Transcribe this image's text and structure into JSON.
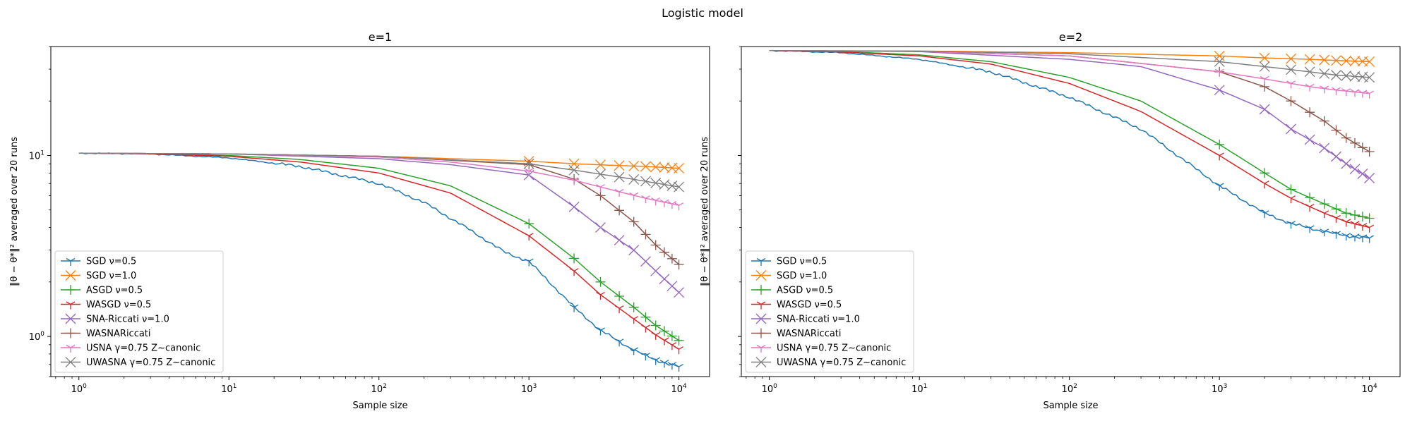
{
  "figure": {
    "title": "Logistic model"
  },
  "colors": {
    "SGD ν=0.5": "#1f77b4",
    "SGD ν=1.0": "#ff7f0e",
    "ASGD ν=0.5": "#2ca02c",
    "WASGD ν=0.5": "#d62728",
    "SNA-Riccati ν=1.0": "#9467bd",
    "WASNARiccati": "#8c564b",
    "USNA γ=0.75 Z~canonic": "#e377c2",
    "UWASNA γ=0.75 Z~canonic": "#7f7f7f"
  },
  "chart_data": [
    {
      "type": "line",
      "title": "e=1",
      "xlabel": "Sample size",
      "ylabel": "‖θ − θ*‖² averaged over 20 runs",
      "xscale": "log",
      "yscale": "log",
      "xlim": [
        0.65,
        16000
      ],
      "ylim": [
        0.6,
        40
      ],
      "xticks": [
        {
          "v": 1,
          "b": "10",
          "e": "0"
        },
        {
          "v": 10,
          "b": "10",
          "e": "1"
        },
        {
          "v": 100,
          "b": "10",
          "e": "2"
        },
        {
          "v": 1000,
          "b": "10",
          "e": "3"
        },
        {
          "v": 10000,
          "b": "10",
          "e": "4"
        }
      ],
      "yticks": [
        {
          "v": 1,
          "b": "10",
          "e": "0"
        },
        {
          "v": 10,
          "b": "10",
          "e": "1"
        }
      ],
      "legend": "lower-left",
      "grid": false,
      "series": [
        {
          "name": "SGD ν=0.5",
          "marker": "tri",
          "points": [
            [
              1,
              10.3
            ],
            [
              3,
              10.2
            ],
            [
              10,
              9.7
            ],
            [
              30,
              8.7
            ],
            [
              100,
              7.0
            ],
            [
              200,
              5.5
            ],
            [
              400,
              3.9
            ],
            [
              700,
              2.9
            ],
            [
              1000,
              2.6
            ],
            [
              2000,
              1.45
            ],
            [
              3000,
              1.08
            ],
            [
              5000,
              0.84
            ],
            [
              7000,
              0.74
            ],
            [
              10000,
              0.68
            ]
          ]
        },
        {
          "name": "SGD ν=1.0",
          "marker": "x",
          "points": [
            [
              1,
              10.3
            ],
            [
              10,
              10.2
            ],
            [
              100,
              9.9
            ],
            [
              1000,
              9.3
            ],
            [
              2000,
              9.0
            ],
            [
              4000,
              8.8
            ],
            [
              6000,
              8.7
            ],
            [
              10000,
              8.5
            ]
          ]
        },
        {
          "name": "ASGD ν=0.5",
          "marker": "plus",
          "points": [
            [
              1,
              10.3
            ],
            [
              3,
              10.25
            ],
            [
              10,
              10.0
            ],
            [
              30,
              9.5
            ],
            [
              100,
              8.5
            ],
            [
              300,
              6.8
            ],
            [
              1000,
              4.2
            ],
            [
              2000,
              2.7
            ],
            [
              3000,
              2.0
            ],
            [
              5000,
              1.45
            ],
            [
              7000,
              1.15
            ],
            [
              10000,
              0.95
            ]
          ]
        },
        {
          "name": "WASGD ν=0.5",
          "marker": "tri",
          "points": [
            [
              1,
              10.3
            ],
            [
              3,
              10.2
            ],
            [
              10,
              9.9
            ],
            [
              30,
              9.2
            ],
            [
              100,
              8.0
            ],
            [
              300,
              6.2
            ],
            [
              1000,
              3.6
            ],
            [
              2000,
              2.3
            ],
            [
              3000,
              1.7
            ],
            [
              5000,
              1.25
            ],
            [
              7000,
              1.02
            ],
            [
              10000,
              0.85
            ]
          ]
        },
        {
          "name": "SNA-Riccati ν=1.0",
          "marker": "x",
          "points": [
            [
              1,
              10.3
            ],
            [
              10,
              10.2
            ],
            [
              100,
              9.6
            ],
            [
              300,
              8.9
            ],
            [
              1000,
              7.8
            ],
            [
              2000,
              5.2
            ],
            [
              3000,
              4.0
            ],
            [
              5000,
              3.0
            ],
            [
              7000,
              2.3
            ],
            [
              10000,
              1.75
            ]
          ]
        },
        {
          "name": "WASNARiccati",
          "marker": "plus",
          "points": [
            [
              1,
              10.3
            ],
            [
              10,
              10.2
            ],
            [
              100,
              9.9
            ],
            [
              1000,
              8.9
            ],
            [
              2000,
              7.4
            ],
            [
              3000,
              6.0
            ],
            [
              5000,
              4.3
            ],
            [
              7000,
              3.2
            ],
            [
              10000,
              2.5
            ]
          ]
        },
        {
          "name": "USNA γ=0.75 Z~canonic",
          "marker": "tri",
          "points": [
            [
              1,
              10.3
            ],
            [
              10,
              10.2
            ],
            [
              100,
              9.8
            ],
            [
              300,
              9.2
            ],
            [
              1000,
              8.2
            ],
            [
              2000,
              7.3
            ],
            [
              4000,
              6.3
            ],
            [
              6000,
              5.8
            ],
            [
              10000,
              5.3
            ]
          ]
        },
        {
          "name": "UWASNA γ=0.75 Z~canonic",
          "marker": "x",
          "points": [
            [
              1,
              10.3
            ],
            [
              10,
              10.2
            ],
            [
              100,
              9.9
            ],
            [
              1000,
              9.0
            ],
            [
              2000,
              8.3
            ],
            [
              4000,
              7.6
            ],
            [
              6000,
              7.2
            ],
            [
              10000,
              6.7
            ]
          ]
        }
      ]
    },
    {
      "type": "line",
      "title": "e=2",
      "xlabel": "Sample size",
      "ylabel": "‖θ − θ*‖² averaged over 20 runs",
      "xscale": "log",
      "yscale": "log",
      "xlim": [
        0.65,
        16000
      ],
      "ylim": [
        0.6,
        40
      ],
      "xticks": [
        {
          "v": 1,
          "b": "10",
          "e": "0"
        },
        {
          "v": 10,
          "b": "10",
          "e": "1"
        },
        {
          "v": 100,
          "b": "10",
          "e": "2"
        },
        {
          "v": 1000,
          "b": "10",
          "e": "3"
        },
        {
          "v": 10000,
          "b": "10",
          "e": "4"
        }
      ],
      "yticks": [
        {
          "v": 1,
          "b": "10",
          "e": "0"
        },
        {
          "v": 10,
          "b": "10",
          "e": "1"
        }
      ],
      "legend": "lower-left",
      "grid": false,
      "series": [
        {
          "name": "SGD ν=0.5",
          "marker": "tri",
          "points": [
            [
              1,
              38
            ],
            [
              3,
              37
            ],
            [
              10,
              34
            ],
            [
              30,
              29
            ],
            [
              100,
              21
            ],
            [
              300,
              14
            ],
            [
              1000,
              6.8
            ],
            [
              2000,
              4.8
            ],
            [
              3000,
              4.2
            ],
            [
              5000,
              3.8
            ],
            [
              7000,
              3.6
            ],
            [
              10000,
              3.5
            ]
          ]
        },
        {
          "name": "SGD ν=1.0",
          "marker": "x",
          "points": [
            [
              1,
              38
            ],
            [
              10,
              37.8
            ],
            [
              100,
              37
            ],
            [
              1000,
              35.5
            ],
            [
              2000,
              34.6
            ],
            [
              4000,
              34
            ],
            [
              6000,
              33.5
            ],
            [
              10000,
              33
            ]
          ]
        },
        {
          "name": "ASGD ν=0.5",
          "marker": "plus",
          "points": [
            [
              1,
              38
            ],
            [
              3,
              37.5
            ],
            [
              10,
              36
            ],
            [
              30,
              33
            ],
            [
              100,
              27
            ],
            [
              300,
              20
            ],
            [
              1000,
              11.5
            ],
            [
              2000,
              8.0
            ],
            [
              3000,
              6.5
            ],
            [
              5000,
              5.4
            ],
            [
              7000,
              4.8
            ],
            [
              10000,
              4.5
            ]
          ]
        },
        {
          "name": "WASGD ν=0.5",
          "marker": "tri",
          "points": [
            [
              1,
              38
            ],
            [
              3,
              37.3
            ],
            [
              10,
              35.5
            ],
            [
              30,
              32
            ],
            [
              100,
              25
            ],
            [
              300,
              17.5
            ],
            [
              1000,
              10
            ],
            [
              2000,
              7.0
            ],
            [
              3000,
              5.8
            ],
            [
              5000,
              4.8
            ],
            [
              7000,
              4.3
            ],
            [
              10000,
              4.0
            ]
          ]
        },
        {
          "name": "SNA-Riccati ν=1.0",
          "marker": "x",
          "points": [
            [
              1,
              38
            ],
            [
              10,
              37.5
            ],
            [
              100,
              34
            ],
            [
              300,
              31
            ],
            [
              1000,
              23
            ],
            [
              2000,
              18
            ],
            [
              3000,
              14
            ],
            [
              5000,
              11
            ],
            [
              7000,
              9
            ],
            [
              10000,
              7.5
            ]
          ]
        },
        {
          "name": "WASNARiccati",
          "marker": "plus",
          "points": [
            [
              1,
              38
            ],
            [
              10,
              37.6
            ],
            [
              100,
              35.5
            ],
            [
              1000,
              29
            ],
            [
              2000,
              24
            ],
            [
              3000,
              20
            ],
            [
              5000,
              15.5
            ],
            [
              7000,
              12.5
            ],
            [
              10000,
              10.5
            ]
          ]
        },
        {
          "name": "USNA γ=0.75 Z~canonic",
          "marker": "tri",
          "points": [
            [
              1,
              38
            ],
            [
              10,
              37.6
            ],
            [
              100,
              35.5
            ],
            [
              1000,
              29
            ],
            [
              2000,
              26.5
            ],
            [
              4000,
              24
            ],
            [
              6000,
              23
            ],
            [
              10000,
              22
            ]
          ]
        },
        {
          "name": "UWASNA γ=0.75 Z~canonic",
          "marker": "x",
          "points": [
            [
              1,
              38
            ],
            [
              10,
              37.7
            ],
            [
              100,
              36.5
            ],
            [
              1000,
              33
            ],
            [
              2000,
              31
            ],
            [
              4000,
              29
            ],
            [
              6000,
              27.8
            ],
            [
              10000,
              27
            ]
          ]
        }
      ]
    }
  ]
}
